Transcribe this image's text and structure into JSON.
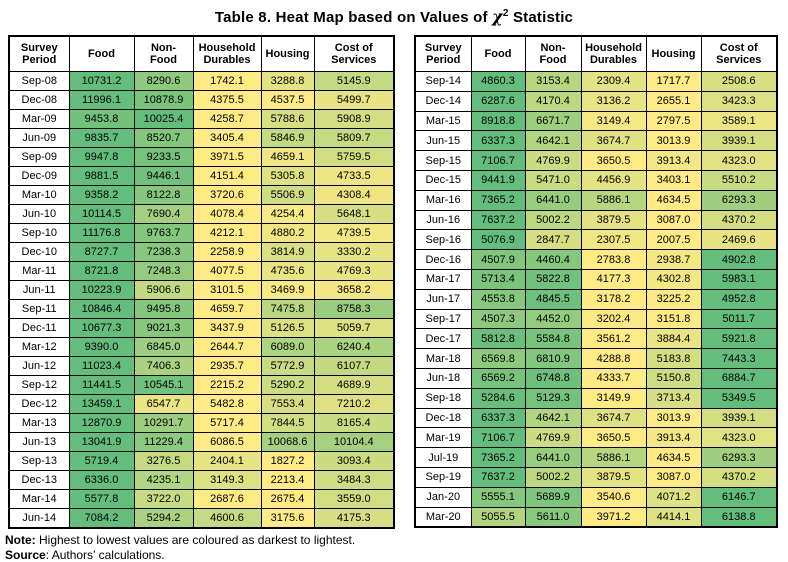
{
  "title": {
    "prefix": "Table 8. Heat Map based on Values of ",
    "chi_symbol": "χ",
    "exponent": "2",
    "suffix": " Statistic"
  },
  "columns": [
    "Survey Period",
    "Food",
    "Non-Food",
    "Household Durables",
    "Housing",
    "Cost of Services"
  ],
  "colors": {
    "lowest": "#FFEB84",
    "highest": "#63BE7B",
    "border": "#000000",
    "header_bg": "#FFFFFF"
  },
  "note": {
    "label": "Note:",
    "text": " Highest to lowest values are coloured as darkest to lightest."
  },
  "source": {
    "label": "Source",
    "text": ": Authors’ calculations."
  },
  "chart_data": {
    "type": "heatmap",
    "title": "Table 8. Heat Map based on Values of χ2 Statistic",
    "value_columns": [
      "Food",
      "Non-Food",
      "Household Durables",
      "Housing",
      "Cost of Services"
    ],
    "color_scale": {
      "low_hex": "#FFEB84",
      "high_hex": "#63BE7B",
      "rule": "per-row: lowest value lightest (yellow), highest value darkest (green)"
    },
    "tables": [
      {
        "rows": [
          {
            "period": "Sep-08",
            "values": [
              10731.2,
              8290.6,
              1742.1,
              3288.8,
              5145.9
            ]
          },
          {
            "period": "Dec-08",
            "values": [
              11996.1,
              10878.9,
              4375.5,
              4537.5,
              5499.7
            ]
          },
          {
            "period": "Mar-09",
            "values": [
              9453.8,
              10025.4,
              4258.7,
              5788.6,
              5908.9
            ]
          },
          {
            "period": "Jun-09",
            "values": [
              9835.7,
              8520.7,
              3405.4,
              5846.9,
              5809.7
            ]
          },
          {
            "period": "Sep-09",
            "values": [
              9947.8,
              9233.5,
              3971.5,
              4659.1,
              5759.5
            ]
          },
          {
            "period": "Dec-09",
            "values": [
              9881.5,
              9446.1,
              4151.4,
              5305.8,
              4733.5
            ]
          },
          {
            "period": "Mar-10",
            "values": [
              9358.2,
              8122.8,
              3720.6,
              5506.9,
              4308.4
            ]
          },
          {
            "period": "Jun-10",
            "values": [
              10114.5,
              7690.4,
              4078.4,
              4254.4,
              5648.1
            ]
          },
          {
            "period": "Sep-10",
            "values": [
              11176.8,
              9763.7,
              4212.1,
              4880.2,
              4739.5
            ]
          },
          {
            "period": "Dec-10",
            "values": [
              8727.7,
              7238.3,
              2258.9,
              3814.9,
              3330.2
            ]
          },
          {
            "period": "Mar-11",
            "values": [
              8721.8,
              7248.3,
              4077.5,
              4735.6,
              4769.3
            ]
          },
          {
            "period": "Jun-11",
            "values": [
              10223.9,
              5906.6,
              3101.5,
              3469.9,
              3658.2
            ]
          },
          {
            "period": "Sep-11",
            "values": [
              10846.4,
              9495.8,
              4659.7,
              7475.8,
              8758.3
            ]
          },
          {
            "period": "Dec-11",
            "values": [
              10677.3,
              9021.3,
              3437.9,
              5126.5,
              5059.7
            ]
          },
          {
            "period": "Mar-12",
            "values": [
              9390.0,
              6845.0,
              2644.7,
              6089.0,
              6240.4
            ]
          },
          {
            "period": "Jun-12",
            "values": [
              11023.4,
              7406.3,
              2935.7,
              5772.9,
              6107.7
            ]
          },
          {
            "period": "Sep-12",
            "values": [
              11441.5,
              10545.1,
              2215.2,
              5290.2,
              4689.9
            ]
          },
          {
            "period": "Dec-12",
            "values": [
              13459.1,
              6547.7,
              5482.8,
              7553.4,
              7210.2
            ]
          },
          {
            "period": "Mar-13",
            "values": [
              12870.9,
              10291.7,
              5717.4,
              7844.5,
              8165.4
            ]
          },
          {
            "period": "Jun-13",
            "values": [
              13041.9,
              11229.4,
              6086.5,
              10068.6,
              10104.4
            ]
          },
          {
            "period": "Sep-13",
            "values": [
              5719.4,
              3276.5,
              2404.1,
              1827.2,
              3093.4
            ]
          },
          {
            "period": "Dec-13",
            "values": [
              6336.0,
              4235.1,
              3149.3,
              2213.4,
              3484.3
            ]
          },
          {
            "period": "Mar-14",
            "values": [
              5577.8,
              3722.0,
              2687.6,
              2675.4,
              3559.0
            ]
          },
          {
            "period": "Jun-14",
            "values": [
              7084.2,
              5294.2,
              4600.6,
              3175.6,
              4175.3
            ]
          }
        ]
      },
      {
        "rows": [
          {
            "period": "Sep-14",
            "values": [
              4860.3,
              3153.4,
              2309.4,
              1717.7,
              2508.6
            ]
          },
          {
            "period": "Dec-14",
            "values": [
              6287.6,
              4170.4,
              3136.2,
              2655.1,
              3423.3
            ]
          },
          {
            "period": "Mar-15",
            "values": [
              8918.8,
              6671.7,
              3149.4,
              2797.5,
              3589.1
            ]
          },
          {
            "period": "Jun-15",
            "values": [
              6337.3,
              4642.1,
              3674.7,
              3013.9,
              3939.1
            ]
          },
          {
            "period": "Sep-15",
            "values": [
              7106.7,
              4769.9,
              3650.5,
              3913.4,
              4323.0
            ]
          },
          {
            "period": "Dec-15",
            "values": [
              9441.9,
              5471.0,
              4456.9,
              3403.1,
              5510.2
            ]
          },
          {
            "period": "Mar-16",
            "values": [
              7365.2,
              6441.0,
              5886.1,
              4634.5,
              6293.3
            ]
          },
          {
            "period": "Jun-16",
            "values": [
              7637.2,
              5002.2,
              3879.5,
              3087.0,
              4370.2
            ]
          },
          {
            "period": "Sep-16",
            "values": [
              5076.9,
              2847.7,
              2307.5,
              2007.5,
              2469.6
            ]
          },
          {
            "period": "Dec-16",
            "values": [
              4507.9,
              4460.4,
              2783.8,
              2938.7,
              4902.8
            ]
          },
          {
            "period": "Mar-17",
            "values": [
              5713.4,
              5822.8,
              4177.3,
              4302.8,
              5983.1
            ]
          },
          {
            "period": "Jun-17",
            "values": [
              4553.8,
              4845.5,
              3178.2,
              3225.2,
              4952.8
            ]
          },
          {
            "period": "Sep-17",
            "values": [
              4507.3,
              4452.0,
              3202.4,
              3151.8,
              5011.7
            ]
          },
          {
            "period": "Dec-17",
            "values": [
              5812.8,
              5584.8,
              3561.2,
              3884.4,
              5921.8
            ]
          },
          {
            "period": "Mar-18",
            "values": [
              6569.8,
              6810.9,
              4288.8,
              5183.8,
              7443.3
            ]
          },
          {
            "period": "Jun-18",
            "values": [
              6569.2,
              6748.8,
              4333.7,
              5150.8,
              6884.7
            ]
          },
          {
            "period": "Sep-18",
            "values": [
              5284.6,
              5129.3,
              3149.9,
              3713.4,
              5349.5
            ]
          },
          {
            "period": "Dec-18",
            "values": [
              6337.3,
              4642.1,
              3674.7,
              3013.9,
              3939.1
            ]
          },
          {
            "period": "Mar-19",
            "values": [
              7106.7,
              4769.9,
              3650.5,
              3913.4,
              4323.0
            ]
          },
          {
            "period": "Jul-19",
            "values": [
              7365.2,
              6441.0,
              5886.1,
              4634.5,
              6293.3
            ]
          },
          {
            "period": "Sep-19",
            "values": [
              7637.2,
              5002.2,
              3879.5,
              3087.0,
              4370.2
            ]
          },
          {
            "period": "Jan-20",
            "values": [
              5555.1,
              5689.9,
              3540.6,
              4071.2,
              6146.7
            ]
          },
          {
            "period": "Mar-20",
            "values": [
              5055.5,
              5611.0,
              3971.2,
              4414.1,
              6138.8
            ]
          }
        ]
      }
    ]
  }
}
